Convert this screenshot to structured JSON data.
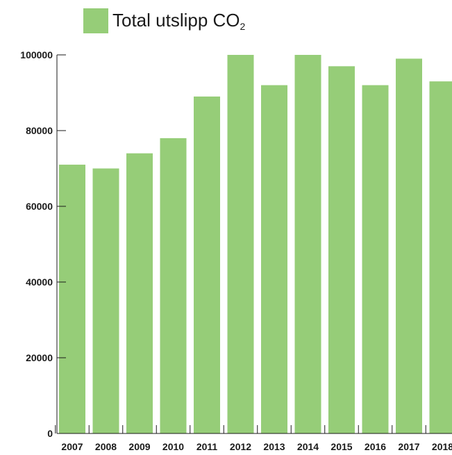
{
  "chart_data": {
    "type": "bar",
    "legend": {
      "label": "Total utslipp CO",
      "label_sub": "2"
    },
    "categories": [
      "2007",
      "2008",
      "2009",
      "2010",
      "2011",
      "2012",
      "2013",
      "2014",
      "2015",
      "2016",
      "2017",
      "2018"
    ],
    "values": [
      71000,
      70000,
      74000,
      78000,
      89000,
      100000,
      92000,
      100000,
      97000,
      92000,
      99000,
      93000
    ],
    "y_ticks": [
      "0",
      "20000",
      "40000",
      "60000",
      "80000",
      "100000"
    ],
    "ylim": [
      0,
      100000
    ],
    "grid": false,
    "legend_position": "top-left",
    "colors": {
      "bar": "#96cd78",
      "axis": "#1a1a1a",
      "text": "#1a1a1a"
    }
  }
}
